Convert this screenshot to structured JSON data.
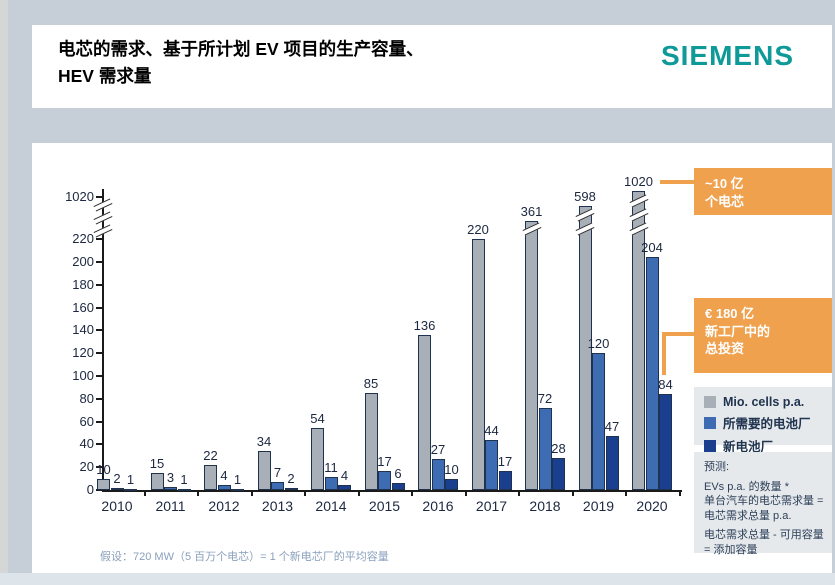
{
  "title": {
    "line1": "电芯的需求、基于所计划 EV 项目的生产容量、",
    "line2": "HEV 需求量"
  },
  "logo": "SIEMENS",
  "colors": {
    "background": "#c6cfd8",
    "panel": "#ffffff",
    "accent_orange": "#efa14e",
    "brand_teal": "#0f9a9a",
    "axis": "#1a1a1a",
    "label_text": "#1c2840",
    "bar_border": "#1f3250",
    "legend_bg": "#e6e9ec",
    "footnote_text": "#8aa0bc"
  },
  "chart_data": {
    "type": "bar",
    "categories": [
      "2010",
      "2011",
      "2012",
      "2013",
      "2014",
      "2015",
      "2016",
      "2017",
      "2018",
      "2019",
      "2020"
    ],
    "series": [
      {
        "name": "Mio. cells p.a.",
        "color": "#a8afb6",
        "values": [
          10,
          15,
          22,
          34,
          54,
          85,
          136,
          220,
          361,
          598,
          1020
        ]
      },
      {
        "name": "所需要的电池厂",
        "color": "#3e6cb2",
        "values": [
          2,
          3,
          4,
          7,
          11,
          17,
          27,
          44,
          72,
          120,
          204
        ]
      },
      {
        "name": "新电池厂",
        "color": "#1a3f8f",
        "values": [
          1,
          1,
          1,
          2,
          4,
          6,
          10,
          17,
          28,
          47,
          84
        ]
      }
    ],
    "y_ticks": [
      0,
      20,
      40,
      60,
      80,
      100,
      120,
      140,
      160,
      180,
      200,
      220
    ],
    "y_break_label": "1020",
    "axis_break_between": [
      220,
      1020
    ],
    "ylim": [
      0,
      220
    ],
    "grid": false,
    "legend_position": "right",
    "bar_value_labels": true
  },
  "annotations": {
    "cells_box": {
      "line1": "~10 亿",
      "line2": "个电芯"
    },
    "invest_box": {
      "line1": "€ 180 亿",
      "line2": "新工厂中的",
      "line3": "总投资"
    }
  },
  "notes": {
    "lines": [
      "预测:",
      "EVs p.a. 的数量 *",
      "单台汽车的电芯需求量 = 电芯需求总量 p.a.",
      "电芯需求总量 - 可用容量 = 添加容量"
    ]
  },
  "footnote": "假设：720 MW（5 百万个电芯）= 1 个新电芯厂的平均容量"
}
